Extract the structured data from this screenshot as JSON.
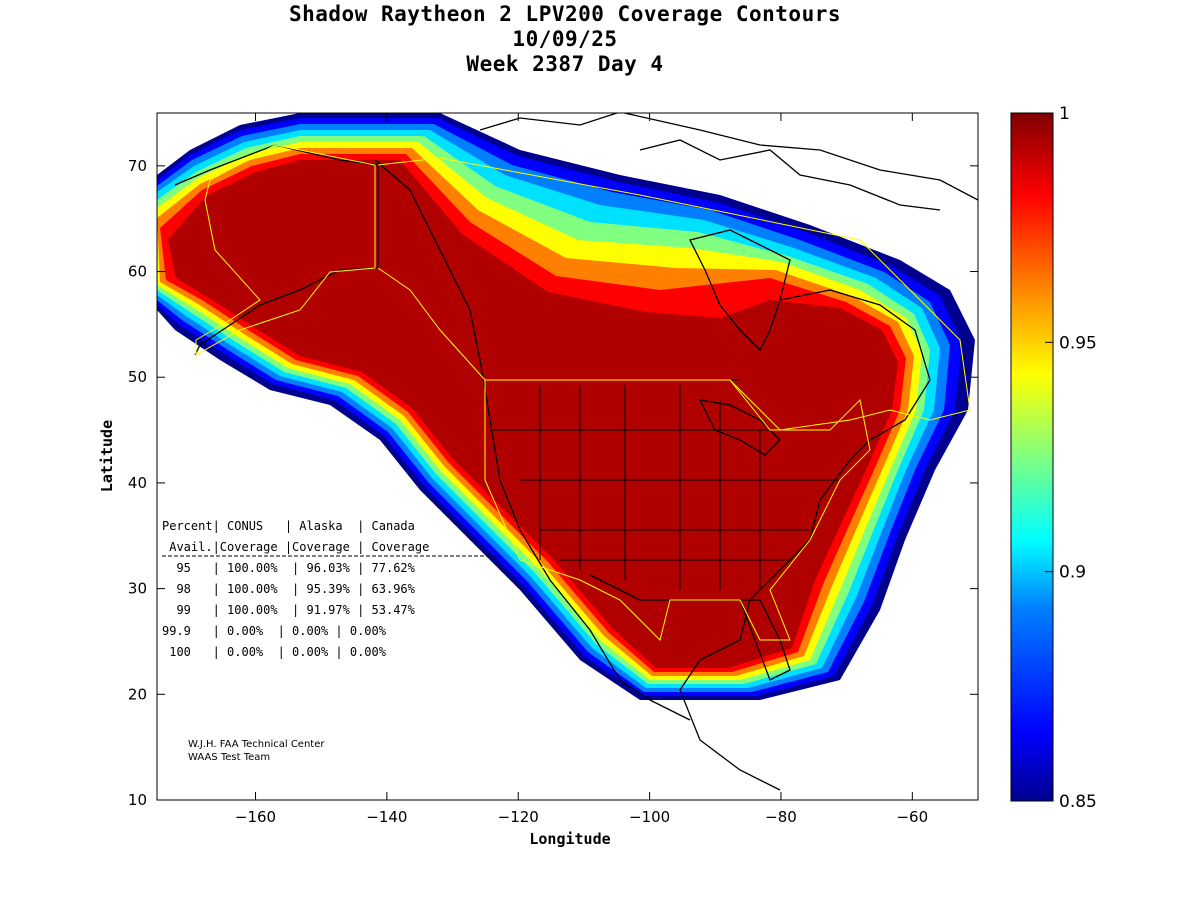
{
  "title": {
    "line1": "Shadow Raytheon 2 LPV200 Coverage Contours",
    "line2": "10/09/25",
    "line3": "Week 2387 Day 4"
  },
  "axes": {
    "xlabel": "Longitude",
    "ylabel": "Latitude",
    "xlim": [
      -175,
      -50
    ],
    "ylim": [
      10,
      75
    ],
    "xticks": [
      -160,
      -140,
      -120,
      -100,
      -80,
      -60
    ],
    "yticks": [
      10,
      20,
      30,
      40,
      50,
      60,
      70
    ]
  },
  "colorbar": {
    "range": [
      0.85,
      1
    ],
    "ticks": [
      {
        "value": 1,
        "label": "1"
      },
      {
        "value": 0.95,
        "label": "0.95"
      },
      {
        "value": 0.9,
        "label": "0.9"
      },
      {
        "value": 0.85,
        "label": "0.85"
      }
    ],
    "colors": [
      "#00008f",
      "#0000ff",
      "#0080ff",
      "#00ffff",
      "#80ff80",
      "#ffff00",
      "#ff8000",
      "#ff0000",
      "#800000"
    ]
  },
  "stats": {
    "lines": [
      "Percent| CONUS   | Alaska  | Canada",
      " Avail.|Coverage |Coverage | Coverage",
      "  95   | 100.00%  | 96.03% | 77.62%",
      "  98   | 100.00%  | 95.39% | 63.96%",
      "  99   | 100.00%  | 91.97% | 53.47%",
      "99.9   | 0.00%  | 0.00% | 0.00%",
      " 100   | 0.00%  | 0.00% | 0.00%"
    ]
  },
  "credits": {
    "line1": "W.J.H. FAA Technical Center",
    "line2": "WAAS Test Team"
  },
  "chart_data": {
    "type": "heatmap",
    "title": "Shadow Raytheon 2 LPV200 Coverage Contours",
    "xlabel": "Longitude",
    "ylabel": "Latitude",
    "xlim": [
      -175,
      -50
    ],
    "ylim": [
      10,
      75
    ],
    "value_range": [
      0.85,
      1
    ],
    "coverage_table": {
      "columns": [
        "Percent Avail.",
        "CONUS Coverage",
        "Alaska Coverage",
        "Canada Coverage"
      ],
      "rows": [
        [
          "95",
          "100.00%",
          "96.03%",
          "77.62%"
        ],
        [
          "98",
          "100.00%",
          "95.39%",
          "63.96%"
        ],
        [
          "99",
          "100.00%",
          "91.97%",
          "53.47%"
        ],
        [
          "99.9",
          "0.00%",
          "0.00%",
          "0.00%"
        ],
        [
          "100",
          "0.00%",
          "0.00%",
          "0.00%"
        ]
      ]
    }
  }
}
